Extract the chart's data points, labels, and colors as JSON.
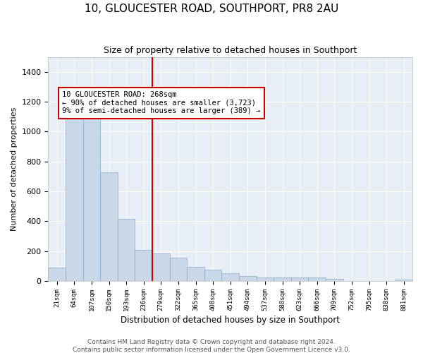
{
  "title": "10, GLOUCESTER ROAD, SOUTHPORT, PR8 2AU",
  "subtitle": "Size of property relative to detached houses in Southport",
  "xlabel": "Distribution of detached houses by size in Southport",
  "ylabel": "Number of detached properties",
  "bar_color": "#c8d8e8",
  "bar_edge_color": "#88aac8",
  "background_color": "#e8eef5",
  "grid_color": "#ffffff",
  "categories": [
    "21sqm",
    "64sqm",
    "107sqm",
    "150sqm",
    "193sqm",
    "236sqm",
    "279sqm",
    "322sqm",
    "365sqm",
    "408sqm",
    "451sqm",
    "494sqm",
    "537sqm",
    "580sqm",
    "623sqm",
    "666sqm",
    "709sqm",
    "752sqm",
    "795sqm",
    "838sqm",
    "881sqm"
  ],
  "values": [
    90,
    1150,
    1150,
    730,
    415,
    210,
    185,
    155,
    95,
    75,
    50,
    35,
    25,
    22,
    22,
    22,
    15,
    0,
    0,
    0,
    8
  ],
  "ylim": [
    0,
    1500
  ],
  "yticks": [
    0,
    200,
    400,
    600,
    800,
    1000,
    1200,
    1400
  ],
  "property_line_index": 6.0,
  "property_line_color": "#cc0000",
  "annotation_text": "10 GLOUCESTER ROAD: 268sqm\n← 90% of detached houses are smaller (3,723)\n9% of semi-detached houses are larger (389) →",
  "annotation_box_color": "#cc0000",
  "footer_text": "Contains HM Land Registry data © Crown copyright and database right 2024.\nContains public sector information licensed under the Open Government Licence v3.0.",
  "title_fontsize": 11,
  "subtitle_fontsize": 9,
  "annotation_fontsize": 7.5,
  "footer_fontsize": 6.5,
  "ylabel_fontsize": 8,
  "xlabel_fontsize": 8.5
}
